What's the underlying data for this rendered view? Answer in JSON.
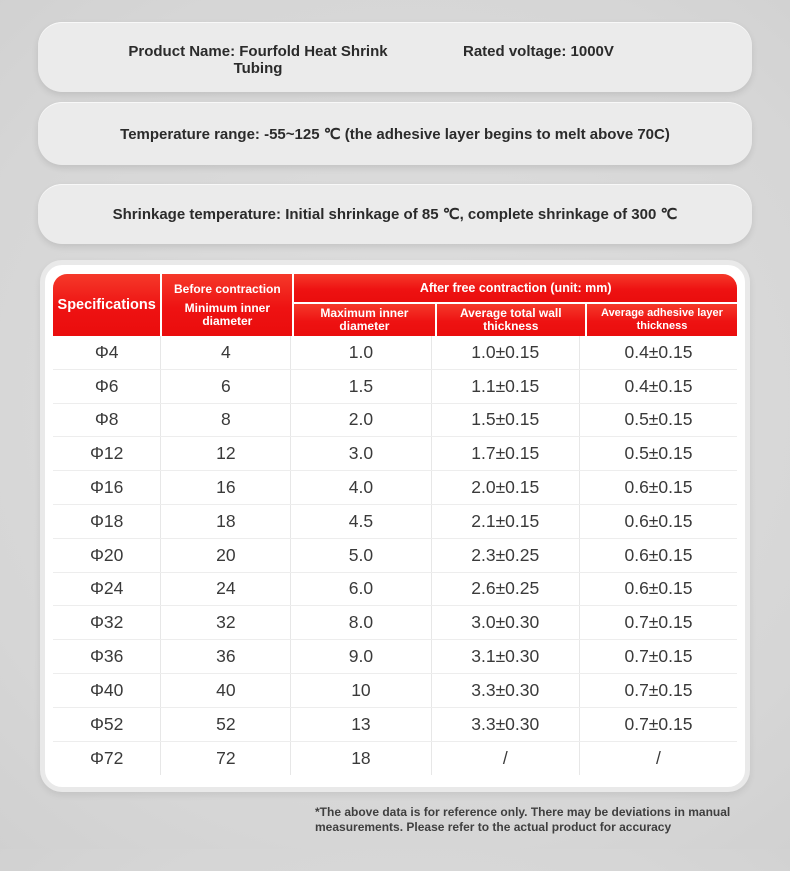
{
  "info_boxes": {
    "product_name": "Product Name: Fourfold Heat Shrink Tubing",
    "rated_voltage": "Rated voltage: 1000V",
    "temperature_range": "Temperature range: -55~125 ℃ (the adhesive layer begins to melt above 70C)",
    "shrinkage_temperature": "Shrinkage temperature: Initial shrinkage of 85 ℃, complete shrinkage of 300 ℃"
  },
  "table": {
    "header": {
      "specifications": "Specifications",
      "before_contraction": "Before contraction",
      "minimum_inner_diameter": "Minimum inner diameter",
      "after_free_contraction": "After free contraction (unit: mm)",
      "sub_columns": {
        "max_inner_diameter": "Maximum inner diameter",
        "avg_wall_thickness": "Average total wall thickness",
        "avg_adhesive_thickness": "Average adhesive layer thickness"
      }
    },
    "rows": [
      {
        "spec": "Φ4",
        "min_inner": "4",
        "max_inner": "1.0",
        "wall": "1.0±0.15",
        "adhesive": "0.4±0.15"
      },
      {
        "spec": "Φ6",
        "min_inner": "6",
        "max_inner": "1.5",
        "wall": "1.1±0.15",
        "adhesive": "0.4±0.15"
      },
      {
        "spec": "Φ8",
        "min_inner": "8",
        "max_inner": "2.0",
        "wall": "1.5±0.15",
        "adhesive": "0.5±0.15"
      },
      {
        "spec": "Φ12",
        "min_inner": "12",
        "max_inner": "3.0",
        "wall": "1.7±0.15",
        "adhesive": "0.5±0.15"
      },
      {
        "spec": "Φ16",
        "min_inner": "16",
        "max_inner": "4.0",
        "wall": "2.0±0.15",
        "adhesive": "0.6±0.15"
      },
      {
        "spec": "Φ18",
        "min_inner": "18",
        "max_inner": "4.5",
        "wall": "2.1±0.15",
        "adhesive": "0.6±0.15"
      },
      {
        "spec": "Φ20",
        "min_inner": "20",
        "max_inner": "5.0",
        "wall": "2.3±0.25",
        "adhesive": "0.6±0.15"
      },
      {
        "spec": "Φ24",
        "min_inner": "24",
        "max_inner": "6.0",
        "wall": "2.6±0.25",
        "adhesive": "0.6±0.15"
      },
      {
        "spec": "Φ32",
        "min_inner": "32",
        "max_inner": "8.0",
        "wall": "3.0±0.30",
        "adhesive": "0.7±0.15"
      },
      {
        "spec": "Φ36",
        "min_inner": "36",
        "max_inner": "9.0",
        "wall": "3.1±0.30",
        "adhesive": "0.7±0.15"
      },
      {
        "spec": "Φ40",
        "min_inner": "40",
        "max_inner": "10",
        "wall": "3.3±0.30",
        "adhesive": "0.7±0.15"
      },
      {
        "spec": "Φ52",
        "min_inner": "52",
        "max_inner": "13",
        "wall": "3.3±0.30",
        "adhesive": "0.7±0.15"
      },
      {
        "spec": "Φ72",
        "min_inner": "72",
        "max_inner": "18",
        "wall": "/",
        "adhesive": "/"
      }
    ]
  },
  "footnote": "*The above data is for reference only. There may be deviations in manual measurements. Please refer to the actual product for accuracy",
  "colors": {
    "header_red": "#ee1212",
    "card_white": "#ffffff",
    "box_gray": "#ebebeb",
    "page_gray": "#cccccc",
    "text_dark": "#2b2b2b"
  }
}
